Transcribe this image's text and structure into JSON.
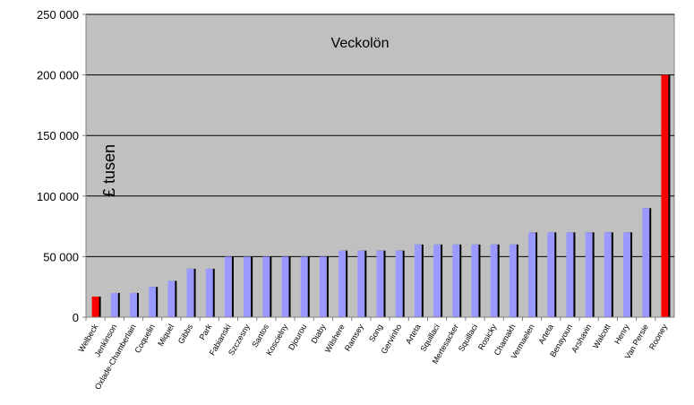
{
  "chart_data": {
    "type": "bar",
    "title": "Veckolön",
    "ylabel": "£ tusen",
    "xlabel": "",
    "ylim": [
      0,
      250000
    ],
    "yticks": [
      0,
      50000,
      100000,
      150000,
      200000,
      250000
    ],
    "ytick_labels": [
      "0",
      "50 000",
      "100 000",
      "150 000",
      "200 000",
      "250 000"
    ],
    "grid": true,
    "plot_background": "#C0C0C0",
    "categories": [
      "Welbeck",
      "Jenkinson",
      "Oxlade-Chamberlain",
      "Coquelin",
      "Miquel",
      "Gibbs",
      "Park",
      "Fabianski",
      "Szczesny",
      "Santos",
      "Koscielny",
      "Djourou",
      "Diaby",
      "Wilshere",
      "Ramsey",
      "Song",
      "Gervinho",
      "Arteta",
      "Squillaci",
      "Mertesacker",
      "Squillaci",
      "Rosicky",
      "Chamakh",
      "Vermaelen",
      "Arteta",
      "Benayoun",
      "Arshavin",
      "Walcott",
      "Henry",
      "Van Persie",
      "Rooney"
    ],
    "values": [
      17000,
      20000,
      20000,
      25000,
      30000,
      40000,
      40000,
      50000,
      50000,
      50000,
      50000,
      50000,
      50000,
      55000,
      55000,
      55000,
      55000,
      60000,
      60000,
      60000,
      60000,
      60000,
      60000,
      70000,
      70000,
      70000,
      70000,
      70000,
      70000,
      90000,
      200000
    ],
    "highlight_indices": [
      0,
      30
    ],
    "colors": {
      "bar": "#9999FF",
      "bar_highlight": "#FF0000",
      "bar_shadow": "#000000",
      "plot_bg": "#C0C0C0",
      "gridline": "#000000",
      "axis": "#808080"
    }
  }
}
